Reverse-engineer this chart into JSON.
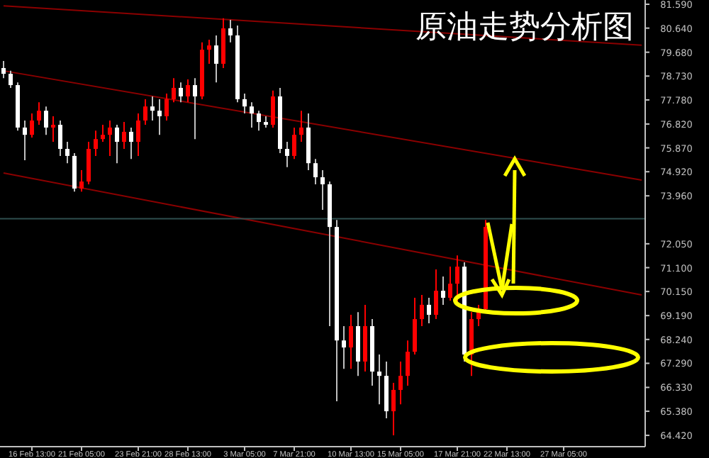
{
  "chart_data": {
    "type": "candlestick",
    "title": "原油走势分析图",
    "categories": [
      null,
      null,
      null,
      null,
      "16 Feb 13:00",
      null,
      null,
      null,
      null,
      null,
      null,
      "21 Feb 05:00",
      null,
      null,
      null,
      null,
      null,
      null,
      null,
      "23 Feb 21:00",
      null,
      null,
      null,
      null,
      null,
      null,
      "28 Feb 13:00",
      null,
      null,
      null,
      null,
      null,
      null,
      null,
      "3 Mar 05:00",
      null,
      null,
      null,
      null,
      null,
      null,
      "7 Mar 21:00",
      null,
      null,
      null,
      null,
      null,
      null,
      null,
      "10 Mar 13:00",
      null,
      null,
      null,
      null,
      null,
      null,
      "15 Mar 05:00",
      null,
      null,
      null,
      null,
      null,
      null,
      null,
      "17 Mar 21:00",
      null,
      null,
      null,
      null,
      null,
      null,
      "22 Mar 13:00",
      null,
      null,
      null,
      null,
      null,
      null,
      null,
      "27 Mar 05:00",
      null,
      null,
      null,
      null,
      null,
      null,
      null,
      null,
      null,
      null,
      null
    ],
    "ohlc": [
      [
        79.05,
        79.33,
        78.65,
        78.82
      ],
      [
        78.82,
        78.94,
        78.26,
        78.37
      ],
      [
        78.37,
        78.48,
        76.56,
        76.68
      ],
      [
        76.68,
        76.96,
        75.38,
        76.39
      ],
      [
        76.39,
        77.24,
        76.28,
        76.96
      ],
      [
        76.96,
        77.69,
        76.79,
        77.35
      ],
      [
        77.35,
        77.52,
        76.39,
        76.68
      ],
      [
        76.68,
        77.13,
        76.11,
        76.79
      ],
      [
        76.79,
        76.96,
        75.55,
        75.83
      ],
      [
        75.83,
        76.11,
        75.26,
        75.55
      ],
      [
        75.55,
        75.66,
        74.13,
        74.25
      ],
      [
        74.25,
        74.98,
        74.13,
        74.53
      ],
      [
        74.53,
        76.11,
        74.42,
        75.83
      ],
      [
        75.83,
        76.56,
        75.55,
        76.22
      ],
      [
        76.22,
        76.79,
        76.11,
        76.39
      ],
      [
        76.39,
        76.96,
        75.55,
        76.68
      ],
      [
        76.68,
        76.79,
        75.26,
        76.11
      ],
      [
        76.11,
        76.9,
        75.83,
        76.51
      ],
      [
        76.51,
        76.68,
        75.43,
        76.11
      ],
      [
        76.11,
        77.24,
        75.55,
        76.96
      ],
      [
        76.96,
        77.81,
        76.79,
        77.52
      ],
      [
        77.52,
        77.92,
        76.96,
        77.35
      ],
      [
        77.35,
        77.81,
        76.39,
        77.13
      ],
      [
        77.13,
        78.03,
        76.96,
        77.81
      ],
      [
        77.81,
        78.65,
        77.69,
        78.26
      ],
      [
        78.26,
        78.48,
        77.69,
        77.92
      ],
      [
        77.92,
        78.6,
        77.69,
        78.37
      ],
      [
        78.37,
        78.65,
        76.22,
        77.92
      ],
      [
        77.92,
        80.07,
        77.81,
        79.78
      ],
      [
        79.78,
        80.18,
        79.22,
        79.95
      ],
      [
        79.95,
        80.35,
        78.48,
        79.22
      ],
      [
        79.22,
        81.03,
        79.05,
        80.63
      ],
      [
        80.63,
        80.97,
        80.07,
        80.35
      ],
      [
        80.35,
        80.74,
        77.69,
        77.81
      ],
      [
        77.81,
        78.03,
        77.24,
        77.52
      ],
      [
        77.52,
        77.69,
        76.68,
        77.24
      ],
      [
        77.24,
        77.35,
        76.56,
        76.9
      ],
      [
        76.9,
        77.13,
        76.68,
        76.79
      ],
      [
        76.79,
        78.15,
        76.68,
        77.92
      ],
      [
        77.92,
        78.26,
        75.66,
        75.83
      ],
      [
        75.83,
        76.11,
        75.1,
        75.55
      ],
      [
        75.55,
        76.68,
        75.43,
        76.39
      ],
      [
        76.39,
        77.35,
        76.11,
        76.68
      ],
      [
        76.68,
        77.24,
        74.98,
        75.26
      ],
      [
        75.26,
        75.43,
        74.42,
        74.7
      ],
      [
        74.7,
        74.98,
        73.4,
        74.42
      ],
      [
        74.42,
        74.53,
        68.77,
        72.72
      ],
      [
        72.72,
        73.0,
        65.78,
        68.2
      ],
      [
        68.2,
        68.77,
        67.07,
        67.92
      ],
      [
        67.92,
        69.22,
        67.07,
        68.77
      ],
      [
        68.77,
        69.33,
        66.79,
        67.36
      ],
      [
        67.36,
        69.62,
        66.96,
        68.77
      ],
      [
        68.77,
        69.05,
        66.4,
        66.96
      ],
      [
        66.96,
        67.64,
        65.66,
        66.79
      ],
      [
        66.79,
        67.36,
        65.1,
        65.38
      ],
      [
        65.38,
        66.51,
        64.42,
        66.23
      ],
      [
        66.23,
        67.36,
        65.66,
        66.79
      ],
      [
        66.79,
        68.2,
        66.4,
        67.75
      ],
      [
        67.75,
        69.9,
        67.64,
        69.05
      ],
      [
        69.05,
        70.01,
        68.77,
        69.62
      ],
      [
        69.62,
        69.9,
        68.88,
        69.22
      ],
      [
        69.22,
        71.03,
        69.05,
        70.18
      ],
      [
        70.18,
        70.75,
        69.62,
        69.9
      ],
      [
        69.9,
        71.14,
        69.79,
        70.46
      ],
      [
        70.46,
        71.59,
        69.62,
        71.14
      ],
      [
        71.14,
        71.31,
        67.36,
        67.64
      ],
      [
        67.64,
        69.33,
        66.79,
        69.05
      ],
      [
        69.05,
        69.62,
        68.77,
        69.45
      ],
      [
        69.45,
        73.0,
        69.33,
        72.72
      ],
      null,
      null,
      null,
      null,
      null,
      null,
      null,
      null,
      null,
      null,
      null,
      null,
      null,
      null,
      null,
      null,
      null,
      null,
      null,
      null,
      null,
      null
    ],
    "ylim": [
      63.97,
      81.76
    ],
    "yticks": [
      {
        "value": 81.59,
        "label": "81.590"
      },
      {
        "value": 80.64,
        "label": "80.640"
      },
      {
        "value": 79.68,
        "label": "79.680"
      },
      {
        "value": 78.73,
        "label": "78.730"
      },
      {
        "value": 77.78,
        "label": "77.780"
      },
      {
        "value": 76.82,
        "label": "76.820"
      },
      {
        "value": 75.87,
        "label": "75.870"
      },
      {
        "value": 74.92,
        "label": "74.920"
      },
      {
        "value": 73.96,
        "label": "73.960"
      },
      {
        "value": 72.05,
        "label": "72.050"
      },
      {
        "value": 71.1,
        "label": "71.100"
      },
      {
        "value": 70.15,
        "label": "70.150"
      },
      {
        "value": 69.19,
        "label": "69.190"
      },
      {
        "value": 68.24,
        "label": "68.240"
      },
      {
        "value": 67.29,
        "label": "67.290"
      },
      {
        "value": 66.33,
        "label": "66.330"
      },
      {
        "value": 65.38,
        "label": "65.380"
      },
      {
        "value": 64.42,
        "label": "64.420"
      }
    ],
    "series": [
      {
        "type": "line",
        "color": "#8b0000",
        "values": [
          81.53,
          null,
          null,
          null,
          null,
          null,
          null,
          null,
          null,
          null,
          null,
          null,
          null,
          null,
          null,
          null,
          null,
          null,
          null,
          null,
          null,
          null,
          null,
          null,
          null,
          null,
          null,
          null,
          null,
          null,
          null,
          null,
          null,
          null,
          null,
          null,
          null,
          null,
          null,
          null,
          null,
          null,
          null,
          null,
          null,
          null,
          null,
          null,
          null,
          null,
          null,
          null,
          null,
          null,
          null,
          null,
          null,
          null,
          null,
          null,
          null,
          null,
          null,
          null,
          null,
          null,
          null,
          null,
          null,
          null,
          null,
          null,
          null,
          null,
          null,
          null,
          null,
          null,
          null,
          null,
          null,
          null,
          null,
          null,
          null,
          null,
          null,
          null,
          null,
          null,
          79.96
        ]
      },
      {
        "type": "line",
        "color": "#8b0000",
        "values": [
          78.94,
          null,
          null,
          null,
          null,
          null,
          null,
          null,
          null,
          null,
          null,
          null,
          null,
          null,
          null,
          null,
          null,
          null,
          null,
          null,
          null,
          null,
          null,
          null,
          null,
          null,
          null,
          null,
          null,
          null,
          null,
          null,
          null,
          null,
          null,
          null,
          null,
          null,
          null,
          null,
          null,
          null,
          null,
          null,
          null,
          null,
          null,
          null,
          null,
          null,
          null,
          null,
          null,
          null,
          null,
          null,
          null,
          null,
          null,
          null,
          null,
          null,
          null,
          null,
          null,
          null,
          null,
          null,
          null,
          null,
          null,
          null,
          null,
          null,
          null,
          null,
          null,
          null,
          null,
          null,
          null,
          null,
          null,
          null,
          null,
          null,
          null,
          null,
          null,
          null,
          74.59
        ]
      },
      {
        "type": "line",
        "color": "#8b0000",
        "values": [
          74.87,
          null,
          null,
          null,
          null,
          null,
          null,
          null,
          null,
          null,
          null,
          null,
          null,
          null,
          null,
          null,
          null,
          null,
          null,
          null,
          null,
          null,
          null,
          null,
          null,
          null,
          null,
          null,
          null,
          null,
          null,
          null,
          null,
          null,
          null,
          null,
          null,
          null,
          null,
          null,
          null,
          null,
          null,
          null,
          null,
          null,
          null,
          null,
          null,
          null,
          null,
          null,
          null,
          null,
          null,
          null,
          null,
          null,
          null,
          null,
          null,
          null,
          null,
          null,
          null,
          null,
          null,
          null,
          null,
          null,
          null,
          null,
          null,
          null,
          null,
          null,
          null,
          null,
          null,
          null,
          null,
          null,
          null,
          null,
          null,
          null,
          null,
          null,
          null,
          null,
          70.01
        ]
      }
    ],
    "ref_lines": [
      {
        "axis": "y",
        "value": 73.05,
        "color": "#2f4f4f"
      }
    ],
    "grid": false
  }
}
